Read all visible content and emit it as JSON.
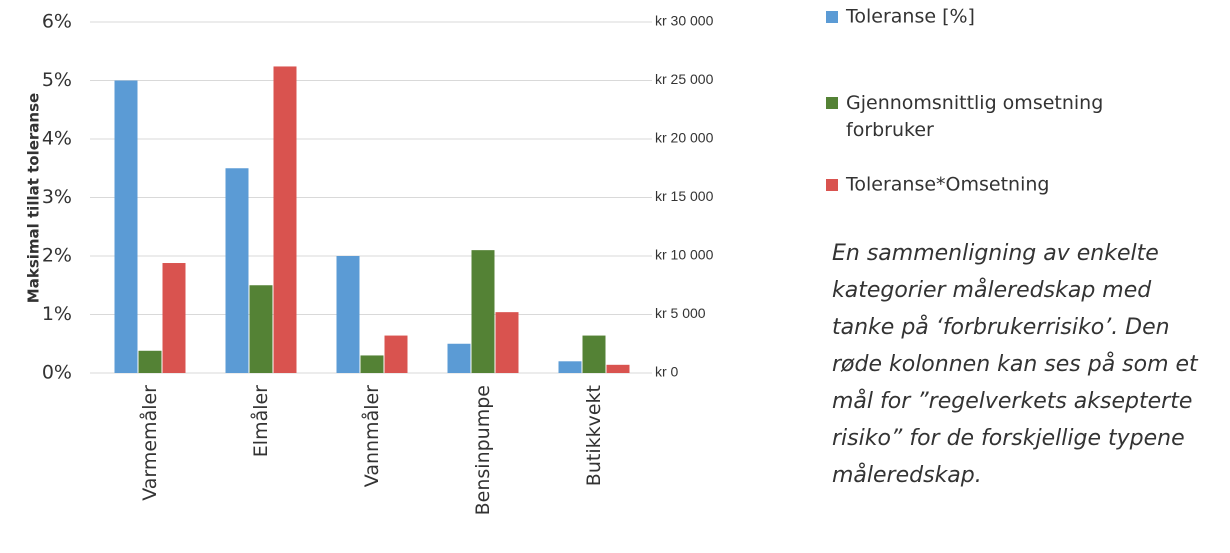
{
  "chart_data": {
    "type": "bar",
    "y_label": "Maksimal tillat toleranse",
    "categories": [
      "Varmemåler",
      "Elmåler",
      "Vannmåler",
      "Bensinpumpe",
      "Butikkvekt"
    ],
    "series": [
      {
        "name": "Toleranse [%]",
        "color": "#5b9bd5",
        "values": [
          5,
          3.5,
          2,
          0.5,
          0.2
        ]
      },
      {
        "name": "Gjennomsnittlig omsetning forbruker",
        "color": "#548235",
        "axis": "y2",
        "values": [
          1900,
          7500,
          1500,
          10500,
          3200
        ]
      },
      {
        "name": "Toleranse*Omsetning",
        "color": "#d9534f",
        "axis": "y2",
        "values": [
          9400,
          26200,
          3200,
          5200,
          700
        ]
      }
    ],
    "ylim": [
      0,
      6
    ],
    "yticks": [
      {
        "value": 0,
        "label": "0%"
      },
      {
        "value": 1,
        "label": "1%"
      },
      {
        "value": 2,
        "label": "2%"
      },
      {
        "value": 3,
        "label": "3%"
      },
      {
        "value": 4,
        "label": "4%"
      },
      {
        "value": 5,
        "label": "5%"
      },
      {
        "value": 6,
        "label": "6%"
      }
    ],
    "y2lim": [
      0,
      30000
    ],
    "y2ticks": [
      {
        "value": 0,
        "label": "kr 0"
      },
      {
        "value": 5000,
        "label": "kr 5 000"
      },
      {
        "value": 10000,
        "label": "kr 10 000"
      },
      {
        "value": 15000,
        "label": "kr 15 000"
      },
      {
        "value": 20000,
        "label": "kr 20 000"
      },
      {
        "value": 25000,
        "label": "kr 25 000"
      },
      {
        "value": 30000,
        "label": "kr 30 000"
      }
    ],
    "grid": true,
    "legend": "right",
    "caption": [
      "En sammenligning av enkelte",
      "kategorier måleredskap med",
      "tanke på ‘forbrukerrisiko’. Den",
      "røde kolonnen kan ses på som et",
      "mål for ”regelverkets aksepterte",
      "risiko” for de forskjellige typene",
      "måleredskap."
    ]
  }
}
